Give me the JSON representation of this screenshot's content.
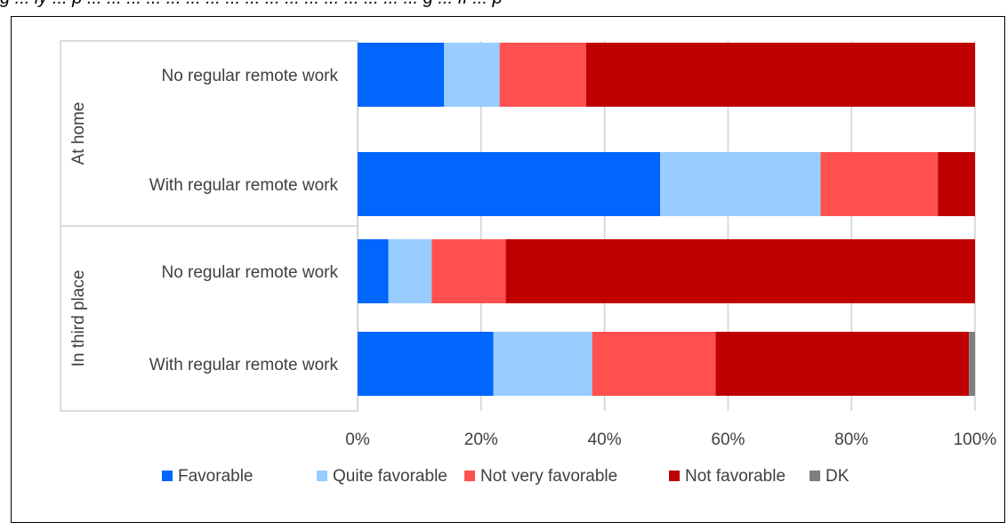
{
  "top_text": "g ... ly ... p ... ... ... ... ... ... ... ... ... ... ... ... ... ... ... ... ... g ... ff ... p",
  "chart_data": {
    "type": "bar",
    "orientation": "horizontal",
    "stacked": true,
    "groups": [
      {
        "label": "At home",
        "categories": [
          "No regular remote work",
          "With regular remote work"
        ]
      },
      {
        "label": "In third place",
        "categories": [
          "No regular remote work",
          "With regular remote work"
        ]
      }
    ],
    "categories": [
      "No regular remote work",
      "With regular remote work",
      "No regular remote work",
      "With regular remote work"
    ],
    "series": [
      {
        "name": "Favorable",
        "color": "#0066ff",
        "values": [
          14,
          49,
          5,
          22
        ]
      },
      {
        "name": "Quite favorable",
        "color": "#99ccff",
        "values": [
          9,
          26,
          7,
          16
        ]
      },
      {
        "name": "Not very favorable",
        "color": "#ff5050",
        "values": [
          14,
          19,
          12,
          20
        ]
      },
      {
        "name": "Not favorable",
        "color": "#c00000",
        "values": [
          63,
          6,
          76,
          41
        ]
      },
      {
        "name": "DK",
        "color": "#7f7f7f",
        "values": [
          0,
          0,
          0,
          1
        ]
      }
    ],
    "xlim": [
      0,
      100
    ],
    "x_ticks": [
      "0%",
      "20%",
      "40%",
      "60%",
      "80%",
      "100%"
    ],
    "grid": true,
    "legend_position": "bottom"
  }
}
